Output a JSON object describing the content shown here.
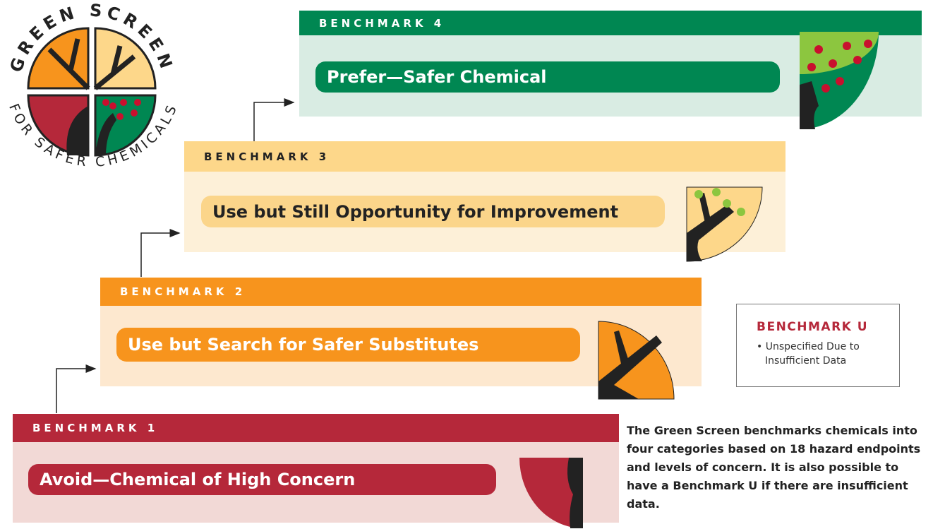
{
  "logo": {
    "top_text": "GREEN SCREEN",
    "bottom_text": "FOR SAFER CHEMICALS"
  },
  "benchmarks": [
    {
      "header": "BENCHMARK 4",
      "label": "Prefer—Safer Chemical"
    },
    {
      "header": "BENCHMARK 3",
      "label": "Use but Still Opportunity for Improvement"
    },
    {
      "header": "BENCHMARK 2",
      "label": "Use but Search for Safer Substitutes"
    },
    {
      "header": "BENCHMARK 1",
      "label": "Avoid—Chemical of High Concern"
    }
  ],
  "benchmark_u": {
    "title": "BENCHMARK U",
    "bullet": "Unspecified Due to Insufficient Data"
  },
  "description": "The Green Screen benchmarks chemicals into four categories based on 18 hazard endpoints and levels of concern. It is also possible to have a Benchmark U if there are insufficient data."
}
